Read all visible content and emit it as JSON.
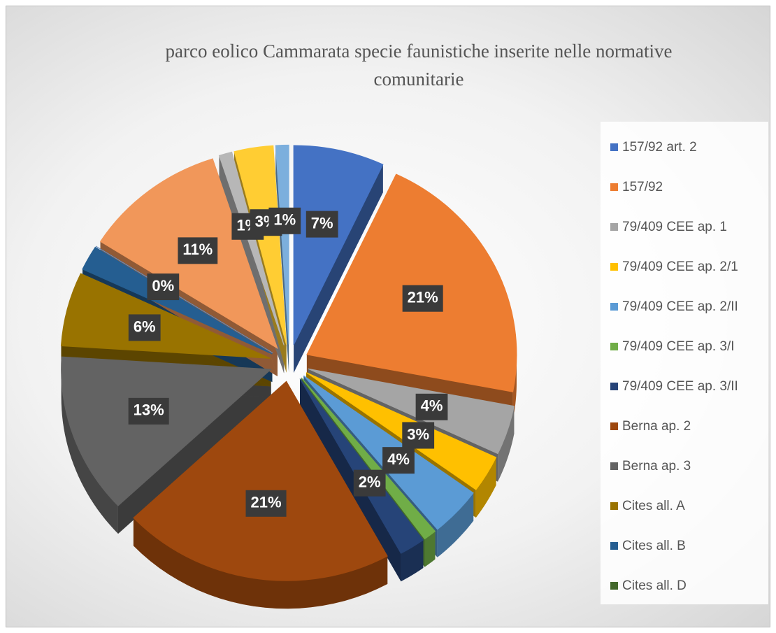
{
  "chart_data": {
    "type": "pie",
    "title": "parco eolico Cammarata specie faunistiche inserite nelle normative comunitarie",
    "categories": [
      "157/92 art. 2",
      "157/92",
      "79/409 CEE ap. 1",
      "79/409 CEE ap. 2/1",
      "79/409 CEE ap. 2/II",
      "79/409 CEE ap. 3/I",
      "79/409 CEE ap. 3/II",
      "Berna ap. 2",
      "Berna ap. 3",
      "Cites all. A",
      "Cites all. B",
      "Cites all. D",
      null,
      null,
      null,
      null,
      null
    ],
    "values": [
      7,
      21,
      4,
      3,
      4,
      1,
      2,
      21,
      13,
      6,
      2,
      0,
      0,
      11,
      1,
      3,
      1
    ],
    "value_labels": [
      "7%",
      "21%",
      "4%",
      "3%",
      "4%",
      null,
      "2%",
      "21%",
      "13%",
      "6%",
      null,
      null,
      "0%",
      "11%",
      "1%",
      "3%",
      "1%"
    ],
    "colors": [
      "#4472c4",
      "#ed7d31",
      "#a5a5a5",
      "#ffc000",
      "#5b9bd5",
      "#70ad47",
      "#264478",
      "#9e480e",
      "#636363",
      "#997300",
      "#255e91",
      "#43682b",
      "#698ed0",
      "#f1975a",
      "#b7b7b7",
      "#ffcd33",
      "#7cafdd"
    ],
    "legend": "right"
  }
}
